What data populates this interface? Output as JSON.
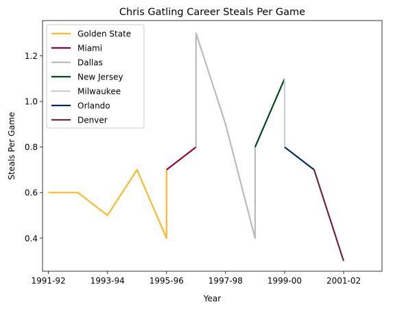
{
  "chart_data": {
    "type": "line",
    "title": "Chris Gatling Career Steals Per Game",
    "xlabel": "Year",
    "ylabel": "Steals Per Game",
    "xlim": [
      1990.8,
      2002.3
    ],
    "ylim": [
      0.255,
      1.355
    ],
    "x_ticks": [
      {
        "x": 1991,
        "label": "1991-92"
      },
      {
        "x": 1993,
        "label": "1993-94"
      },
      {
        "x": 1995,
        "label": "1995-96"
      },
      {
        "x": 1997,
        "label": "1997-98"
      },
      {
        "x": 1999,
        "label": "1999-00"
      },
      {
        "x": 2001,
        "label": "2001-02"
      }
    ],
    "y_ticks": [
      0.4,
      0.6,
      0.8,
      1.0,
      1.2
    ],
    "y_tick_labels": [
      "0.4",
      "0.6",
      "0.8",
      "1.0",
      "1.2"
    ],
    "grid": false,
    "legend_position": "top-left",
    "series": [
      {
        "name": "Golden State",
        "color": "#FDB927",
        "points": [
          [
            1991,
            0.6
          ],
          [
            1992,
            0.6
          ],
          [
            1993,
            0.5
          ],
          [
            1994,
            0.7
          ],
          [
            1995,
            0.4
          ],
          [
            1995,
            0.7
          ]
        ]
      },
      {
        "name": "Miami",
        "color": "#98002E",
        "points": [
          [
            1995,
            0.7
          ],
          [
            1996,
            0.8
          ]
        ]
      },
      {
        "name": "Dallas",
        "color": "#BBBBBB",
        "points": [
          [
            1996,
            0.8
          ],
          [
            1996,
            1.3
          ],
          [
            1997,
            0.9
          ],
          [
            1998,
            0.4
          ],
          [
            1998,
            0.8
          ]
        ]
      },
      {
        "name": "New Jersey",
        "color": "#00471B",
        "points": [
          [
            1998,
            0.8
          ],
          [
            1999,
            1.1
          ]
        ]
      },
      {
        "name": "Milwaukee",
        "color": "#C4CED4",
        "points": [
          [
            1999,
            1.1
          ],
          [
            1999,
            0.8
          ]
        ]
      },
      {
        "name": "Orlando",
        "color": "#002B5C",
        "points": [
          [
            1999,
            0.8
          ],
          [
            2000,
            0.7
          ]
        ]
      },
      {
        "name": "Denver",
        "color": "#6F263D",
        "points": [
          [
            2000,
            0.7
          ],
          [
            2001,
            0.3
          ]
        ]
      }
    ]
  }
}
